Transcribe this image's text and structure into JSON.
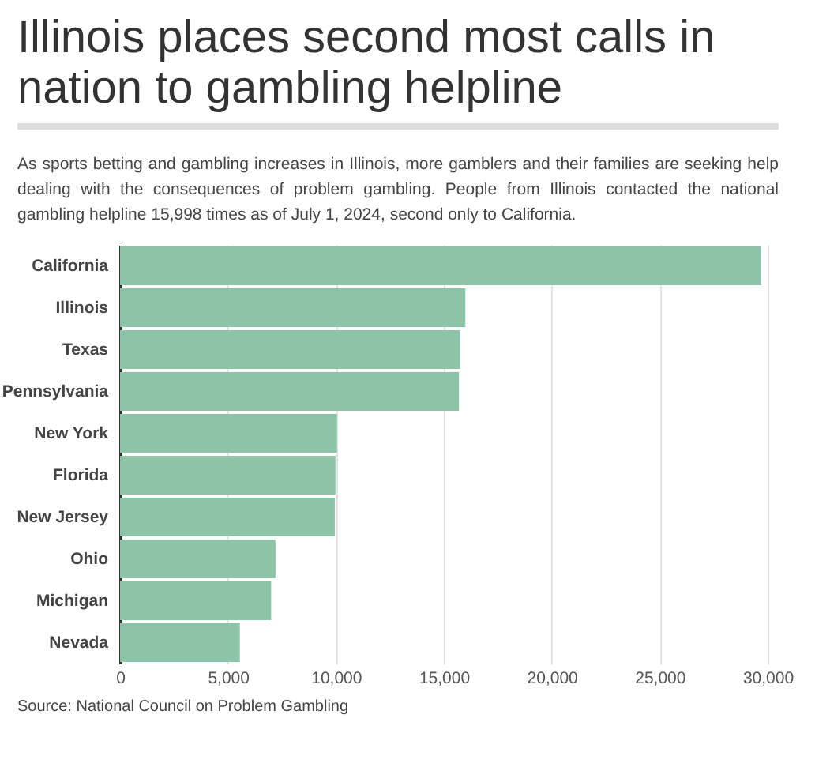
{
  "chart_data": {
    "type": "bar",
    "orientation": "horizontal",
    "title": "Illinois places second most calls in nation to gambling helpline",
    "subtitle": "As sports betting and gambling increases in Illinois, more gamblers and their families are seeking help dealing with the consequences of problem gambling. People from Illinois contacted the national gambling helpline 15,998 times as of July 1, 2024, second only to California.",
    "categories": [
      "California",
      "Illinois",
      "Texas",
      "Pennsylvania",
      "New York",
      "Florida",
      "New Jersey",
      "Ohio",
      "Michigan",
      "Nevada"
    ],
    "values": [
      29700,
      15998,
      15750,
      15700,
      10050,
      9980,
      9950,
      7200,
      7000,
      5550
    ],
    "color": "#8dc4a7",
    "xlim": [
      0,
      30000
    ],
    "xticks": [
      0,
      {
        "value": 5000,
        "label": "5,000"
      },
      {
        "value": 10000,
        "label": "10,000"
      },
      {
        "value": 15000,
        "label": "15,000"
      },
      {
        "value": 20000,
        "label": "20,000"
      },
      {
        "value": 25000,
        "label": "25,000"
      },
      {
        "value": 30000,
        "label": "30,000"
      }
    ],
    "grid": "x",
    "annotations": [
      "Source: National Council on Problem Gambling"
    ]
  }
}
